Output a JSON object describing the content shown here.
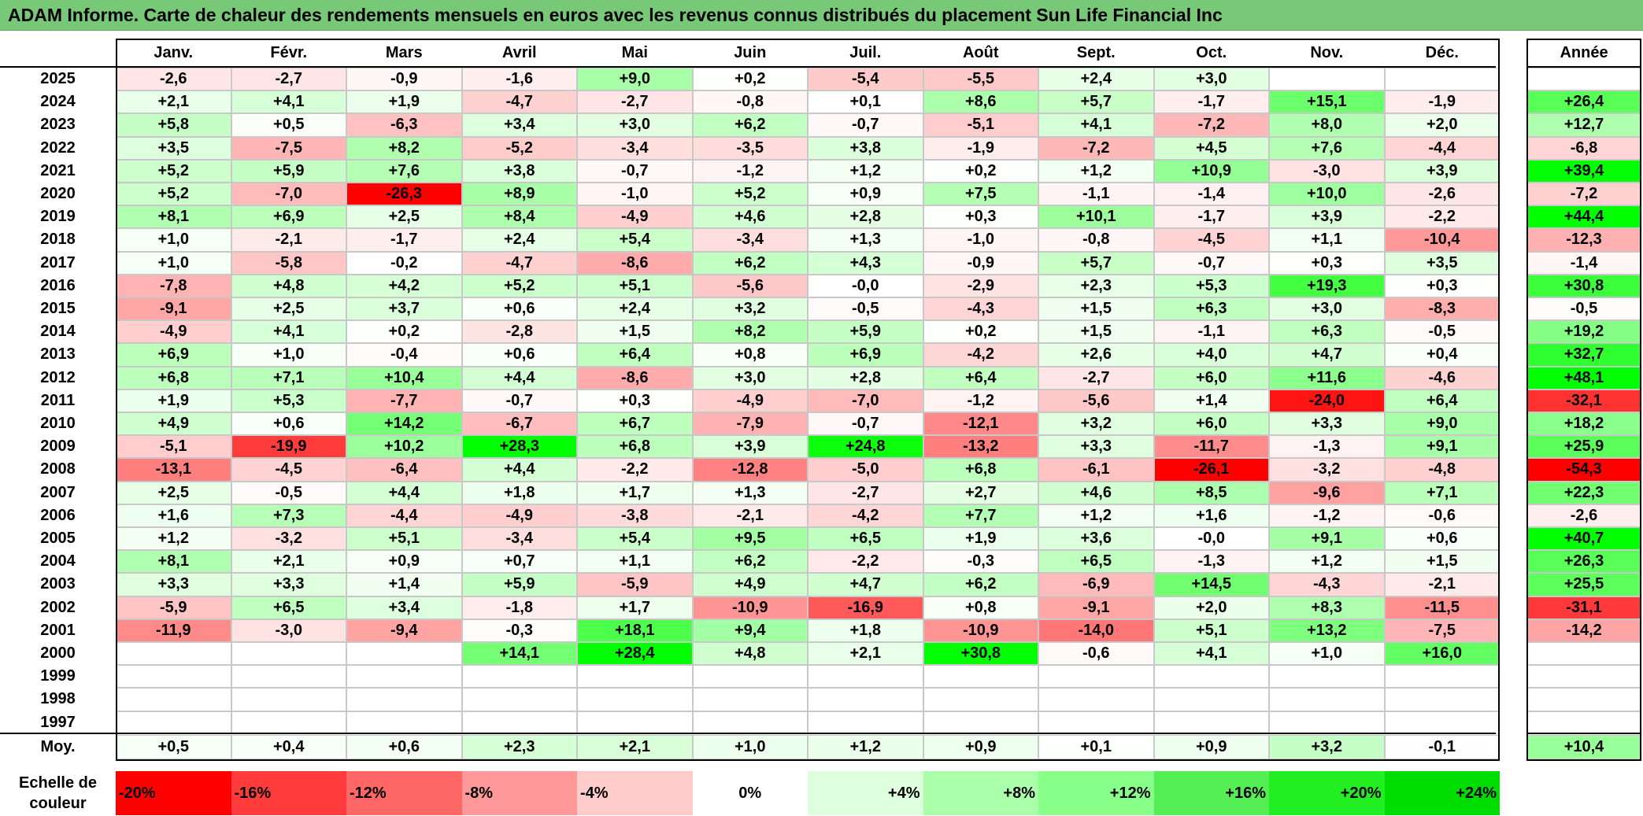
{
  "title": "ADAM Informe. Carte de chaleur des rendements mensuels en euros avec les revenus connus distribués du placement Sun Life Financial Inc",
  "chart_data": {
    "type": "heatmap",
    "title": "ADAM Informe. Carte de chaleur des rendements mensuels en euros avec les revenus connus distribués du placement Sun Life Financial Inc",
    "columns": [
      "Janv.",
      "Févr.",
      "Mars",
      "Avril",
      "Mai",
      "Juin",
      "Juil.",
      "Août",
      "Sept.",
      "Oct.",
      "Nov.",
      "Déc."
    ],
    "annual_header": "Année",
    "rows": [
      {
        "year": "2025",
        "values": [
          "-2,6",
          "-2,7",
          "-0,9",
          "-1,6",
          "+9,0",
          "+0,2",
          "-5,4",
          "-5,5",
          "+2,4",
          "+3,0",
          "",
          ""
        ],
        "annual": ""
      },
      {
        "year": "2024",
        "values": [
          "+2,1",
          "+4,1",
          "+1,9",
          "-4,7",
          "-2,7",
          "-0,8",
          "+0,1",
          "+8,6",
          "+5,7",
          "-1,7",
          "+15,1",
          "-1,9"
        ],
        "annual": "+26,4"
      },
      {
        "year": "2023",
        "values": [
          "+5,8",
          "+0,5",
          "-6,3",
          "+3,4",
          "+3,0",
          "+6,2",
          "-0,7",
          "-5,1",
          "+4,1",
          "-7,2",
          "+8,0",
          "+2,0"
        ],
        "annual": "+12,7"
      },
      {
        "year": "2022",
        "values": [
          "+3,5",
          "-7,5",
          "+8,2",
          "-5,2",
          "-3,4",
          "-3,5",
          "+3,8",
          "-1,9",
          "-7,2",
          "+4,5",
          "+7,6",
          "-4,4"
        ],
        "annual": "-6,8"
      },
      {
        "year": "2021",
        "values": [
          "+5,2",
          "+5,9",
          "+7,6",
          "+3,8",
          "-0,7",
          "-1,2",
          "+1,2",
          "+0,2",
          "+1,2",
          "+10,9",
          "-3,0",
          "+3,9"
        ],
        "annual": "+39,4"
      },
      {
        "year": "2020",
        "values": [
          "+5,2",
          "-7,0",
          "-26,3",
          "+8,9",
          "-1,0",
          "+5,2",
          "+0,9",
          "+7,5",
          "-1,1",
          "-1,4",
          "+10,0",
          "-2,6"
        ],
        "annual": "-7,2"
      },
      {
        "year": "2019",
        "values": [
          "+8,1",
          "+6,9",
          "+2,5",
          "+8,4",
          "-4,9",
          "+4,6",
          "+2,8",
          "+0,3",
          "+10,1",
          "-1,7",
          "+3,9",
          "-2,2"
        ],
        "annual": "+44,4"
      },
      {
        "year": "2018",
        "values": [
          "+1,0",
          "-2,1",
          "-1,7",
          "+2,4",
          "+5,4",
          "-3,4",
          "+1,3",
          "-1,0",
          "-0,8",
          "-4,5",
          "+1,1",
          "-10,4"
        ],
        "annual": "-12,3"
      },
      {
        "year": "2017",
        "values": [
          "+1,0",
          "-5,8",
          "-0,2",
          "-4,7",
          "-8,6",
          "+6,2",
          "+4,3",
          "-0,9",
          "+5,7",
          "-0,7",
          "+0,3",
          "+3,5"
        ],
        "annual": "-1,4"
      },
      {
        "year": "2016",
        "values": [
          "-7,8",
          "+4,8",
          "+4,2",
          "+5,2",
          "+5,1",
          "-5,6",
          "-0,0",
          "-2,9",
          "+2,3",
          "+5,3",
          "+19,3",
          "+0,3"
        ],
        "annual": "+30,8"
      },
      {
        "year": "2015",
        "values": [
          "-9,1",
          "+2,5",
          "+3,7",
          "+0,6",
          "+2,4",
          "+3,2",
          "-0,5",
          "-4,3",
          "+1,5",
          "+6,3",
          "+3,0",
          "-8,3"
        ],
        "annual": "-0,5"
      },
      {
        "year": "2014",
        "values": [
          "-4,9",
          "+4,1",
          "+0,2",
          "-2,8",
          "+1,5",
          "+8,2",
          "+5,9",
          "+0,2",
          "+1,5",
          "-1,1",
          "+6,3",
          "-0,5"
        ],
        "annual": "+19,2"
      },
      {
        "year": "2013",
        "values": [
          "+6,9",
          "+1,0",
          "-0,4",
          "+0,6",
          "+6,4",
          "+0,8",
          "+6,9",
          "-4,2",
          "+2,6",
          "+4,0",
          "+4,7",
          "+0,4"
        ],
        "annual": "+32,7"
      },
      {
        "year": "2012",
        "values": [
          "+6,8",
          "+7,1",
          "+10,4",
          "+4,4",
          "-8,6",
          "+3,0",
          "+2,8",
          "+6,4",
          "-2,7",
          "+6,0",
          "+11,6",
          "-4,6"
        ],
        "annual": "+48,1"
      },
      {
        "year": "2011",
        "values": [
          "+1,9",
          "+5,3",
          "-7,7",
          "-0,7",
          "+0,3",
          "-4,9",
          "-7,0",
          "-1,2",
          "-5,6",
          "+1,4",
          "-24,0",
          "+6,4"
        ],
        "annual": "-32,1"
      },
      {
        "year": "2010",
        "values": [
          "+4,9",
          "+0,6",
          "+14,2",
          "-6,7",
          "+6,7",
          "-7,9",
          "-0,7",
          "-12,1",
          "+3,2",
          "+6,0",
          "+3,3",
          "+9,0"
        ],
        "annual": "+18,2"
      },
      {
        "year": "2009",
        "values": [
          "-5,1",
          "-19,9",
          "+10,2",
          "+28,3",
          "+6,8",
          "+3,9",
          "+24,8",
          "-13,2",
          "+3,3",
          "-11,7",
          "-1,3",
          "+9,1"
        ],
        "annual": "+25,9"
      },
      {
        "year": "2008",
        "values": [
          "-13,1",
          "-4,5",
          "-6,4",
          "+4,4",
          "-2,2",
          "-12,8",
          "-5,0",
          "+6,8",
          "-6,1",
          "-26,1",
          "-3,2",
          "-4,8"
        ],
        "annual": "-54,3"
      },
      {
        "year": "2007",
        "values": [
          "+2,5",
          "-0,5",
          "+4,4",
          "+1,8",
          "+1,7",
          "+1,3",
          "-2,7",
          "+2,7",
          "+4,6",
          "+8,5",
          "-9,6",
          "+7,1"
        ],
        "annual": "+22,3"
      },
      {
        "year": "2006",
        "values": [
          "+1,6",
          "+7,3",
          "-4,4",
          "-4,9",
          "-3,8",
          "-2,1",
          "-4,2",
          "+7,7",
          "+1,2",
          "+1,6",
          "-1,2",
          "-0,6"
        ],
        "annual": "-2,6"
      },
      {
        "year": "2005",
        "values": [
          "+1,2",
          "-3,2",
          "+5,1",
          "-3,4",
          "+5,4",
          "+9,5",
          "+6,5",
          "+1,9",
          "+3,6",
          "-0,0",
          "+9,1",
          "+0,6"
        ],
        "annual": "+40,7"
      },
      {
        "year": "2004",
        "values": [
          "+8,1",
          "+2,1",
          "+0,9",
          "+0,7",
          "+1,1",
          "+6,2",
          "-2,2",
          "-0,3",
          "+6,5",
          "-1,3",
          "+1,2",
          "+1,5"
        ],
        "annual": "+26,3"
      },
      {
        "year": "2003",
        "values": [
          "+3,3",
          "+3,3",
          "+1,4",
          "+5,9",
          "-5,9",
          "+4,9",
          "+4,7",
          "+6,2",
          "-6,9",
          "+14,5",
          "-4,3",
          "-2,1"
        ],
        "annual": "+25,5"
      },
      {
        "year": "2002",
        "values": [
          "-5,9",
          "+6,5",
          "+3,4",
          "-1,8",
          "+1,7",
          "-10,9",
          "-16,9",
          "+0,8",
          "-9,1",
          "+2,0",
          "+8,3",
          "-11,5"
        ],
        "annual": "-31,1"
      },
      {
        "year": "2001",
        "values": [
          "-11,9",
          "-3,0",
          "-9,4",
          "-0,3",
          "+18,1",
          "+9,4",
          "+1,8",
          "-10,9",
          "-14,0",
          "+5,1",
          "+13,2",
          "-7,5"
        ],
        "annual": "-14,2"
      },
      {
        "year": "2000",
        "values": [
          "",
          "",
          "",
          "+14,1",
          "+28,4",
          "+4,8",
          "+2,1",
          "+30,8",
          "-0,6",
          "+4,1",
          "+1,0",
          "+16,0"
        ],
        "annual": ""
      },
      {
        "year": "1999",
        "values": [
          "",
          "",
          "",
          "",
          "",
          "",
          "",
          "",
          "",
          "",
          "",
          ""
        ],
        "annual": ""
      },
      {
        "year": "1998",
        "values": [
          "",
          "",
          "",
          "",
          "",
          "",
          "",
          "",
          "",
          "",
          "",
          ""
        ],
        "annual": ""
      },
      {
        "year": "1997",
        "values": [
          "",
          "",
          "",
          "",
          "",
          "",
          "",
          "",
          "",
          "",
          "",
          ""
        ],
        "annual": ""
      }
    ],
    "average": {
      "label": "Moy.",
      "values": [
        "+0,5",
        "+0,4",
        "+0,6",
        "+2,3",
        "+2,1",
        "+1,0",
        "+1,2",
        "+0,9",
        "+0,1",
        "+0,9",
        "+3,2",
        "-0,1"
      ],
      "annual": "+10,4"
    },
    "legend": {
      "label": "Echelle de couleur",
      "items": [
        "-20%",
        "-16%",
        "-12%",
        "-8%",
        "-4%",
        "0%",
        "+4%",
        "+8%",
        "+12%",
        "+16%",
        "+20%",
        "+24%"
      ],
      "colors": [
        "#ff0000",
        "#ff3b3b",
        "#ff6666",
        "#ff9999",
        "#ffcccc",
        "#ffffff",
        "#ddffdd",
        "#aaffaa",
        "#88ff88",
        "#55ee55",
        "#22ee22",
        "#00dd00"
      ]
    }
  }
}
